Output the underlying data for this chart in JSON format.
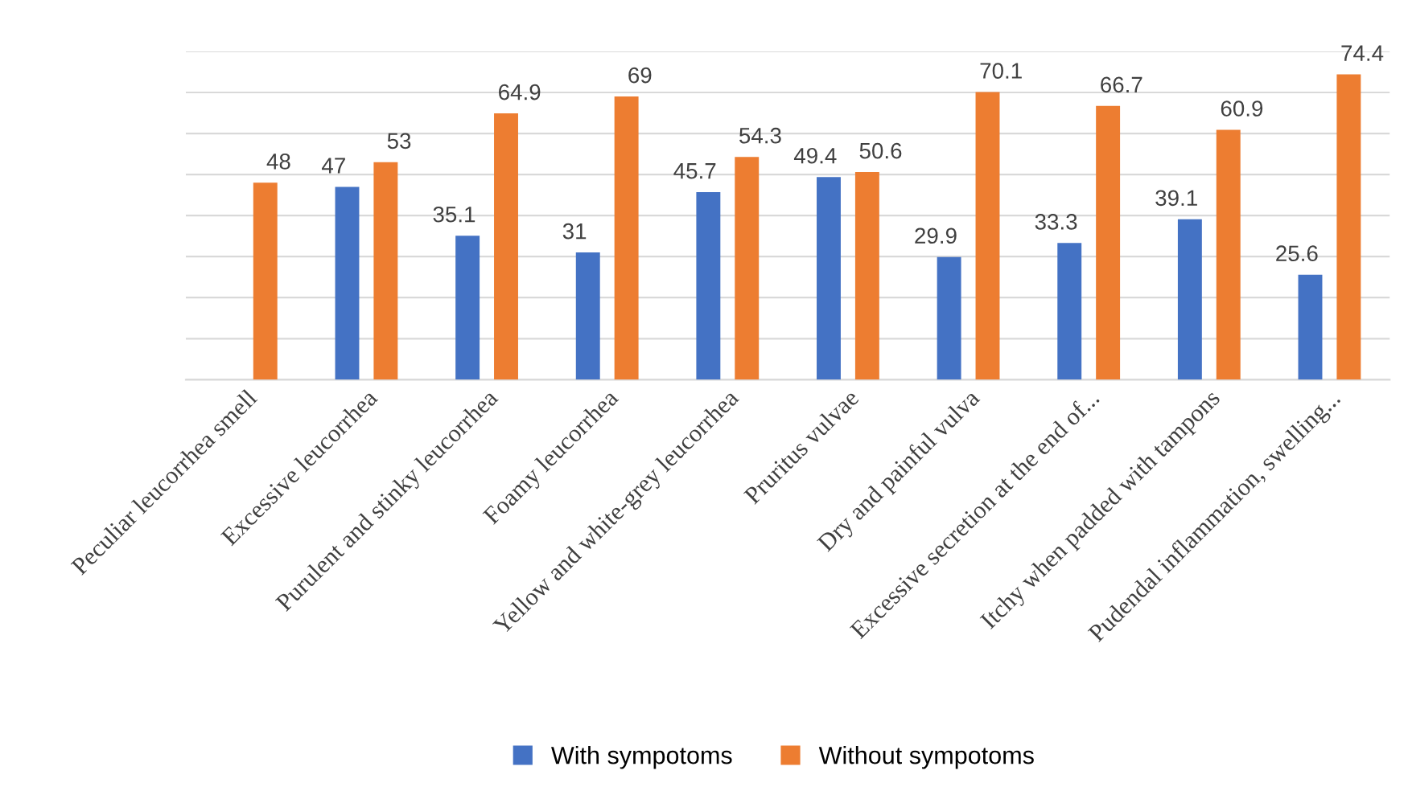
{
  "chart_data": {
    "type": "bar",
    "categories": [
      "Peculiar leucorrhea smell",
      "Excessive leucorrhea",
      "Purulent and stinky leucorrhea",
      "Foamy leucorrhea",
      "Yellow and white-grey leucorrhea",
      "Pruritus vulvae",
      "Dry and painful vulva",
      "Excessive secretion at the end of...",
      "Itchy when padded with tampons",
      "Pudendal inflammation, swelling..."
    ],
    "series": [
      {
        "name": "With sympotoms",
        "color": "#4472c4",
        "values": [
          null,
          47,
          35.1,
          31,
          45.7,
          49.4,
          29.9,
          33.3,
          39.1,
          25.6
        ]
      },
      {
        "name": "Without sympotoms",
        "color": "#ed7d31",
        "values": [
          48,
          53,
          64.9,
          69,
          54.3,
          50.6,
          70.1,
          66.7,
          60.9,
          74.4
        ]
      }
    ],
    "ylim": [
      0,
      80
    ],
    "yticks": [
      {
        "value": 0,
        "label": null
      },
      {
        "value": 10,
        "label": null
      },
      {
        "value": 20,
        "label": null
      },
      {
        "value": 30,
        "label": null
      },
      {
        "value": 40,
        "label": null
      },
      {
        "value": 50,
        "label": null
      },
      {
        "value": 60,
        "label": null
      },
      {
        "value": 70,
        "label": null
      },
      {
        "value": 80,
        "label": null
      }
    ],
    "tick_labels": "x",
    "grid": "y",
    "legend": "bottom",
    "data_labels": true
  }
}
